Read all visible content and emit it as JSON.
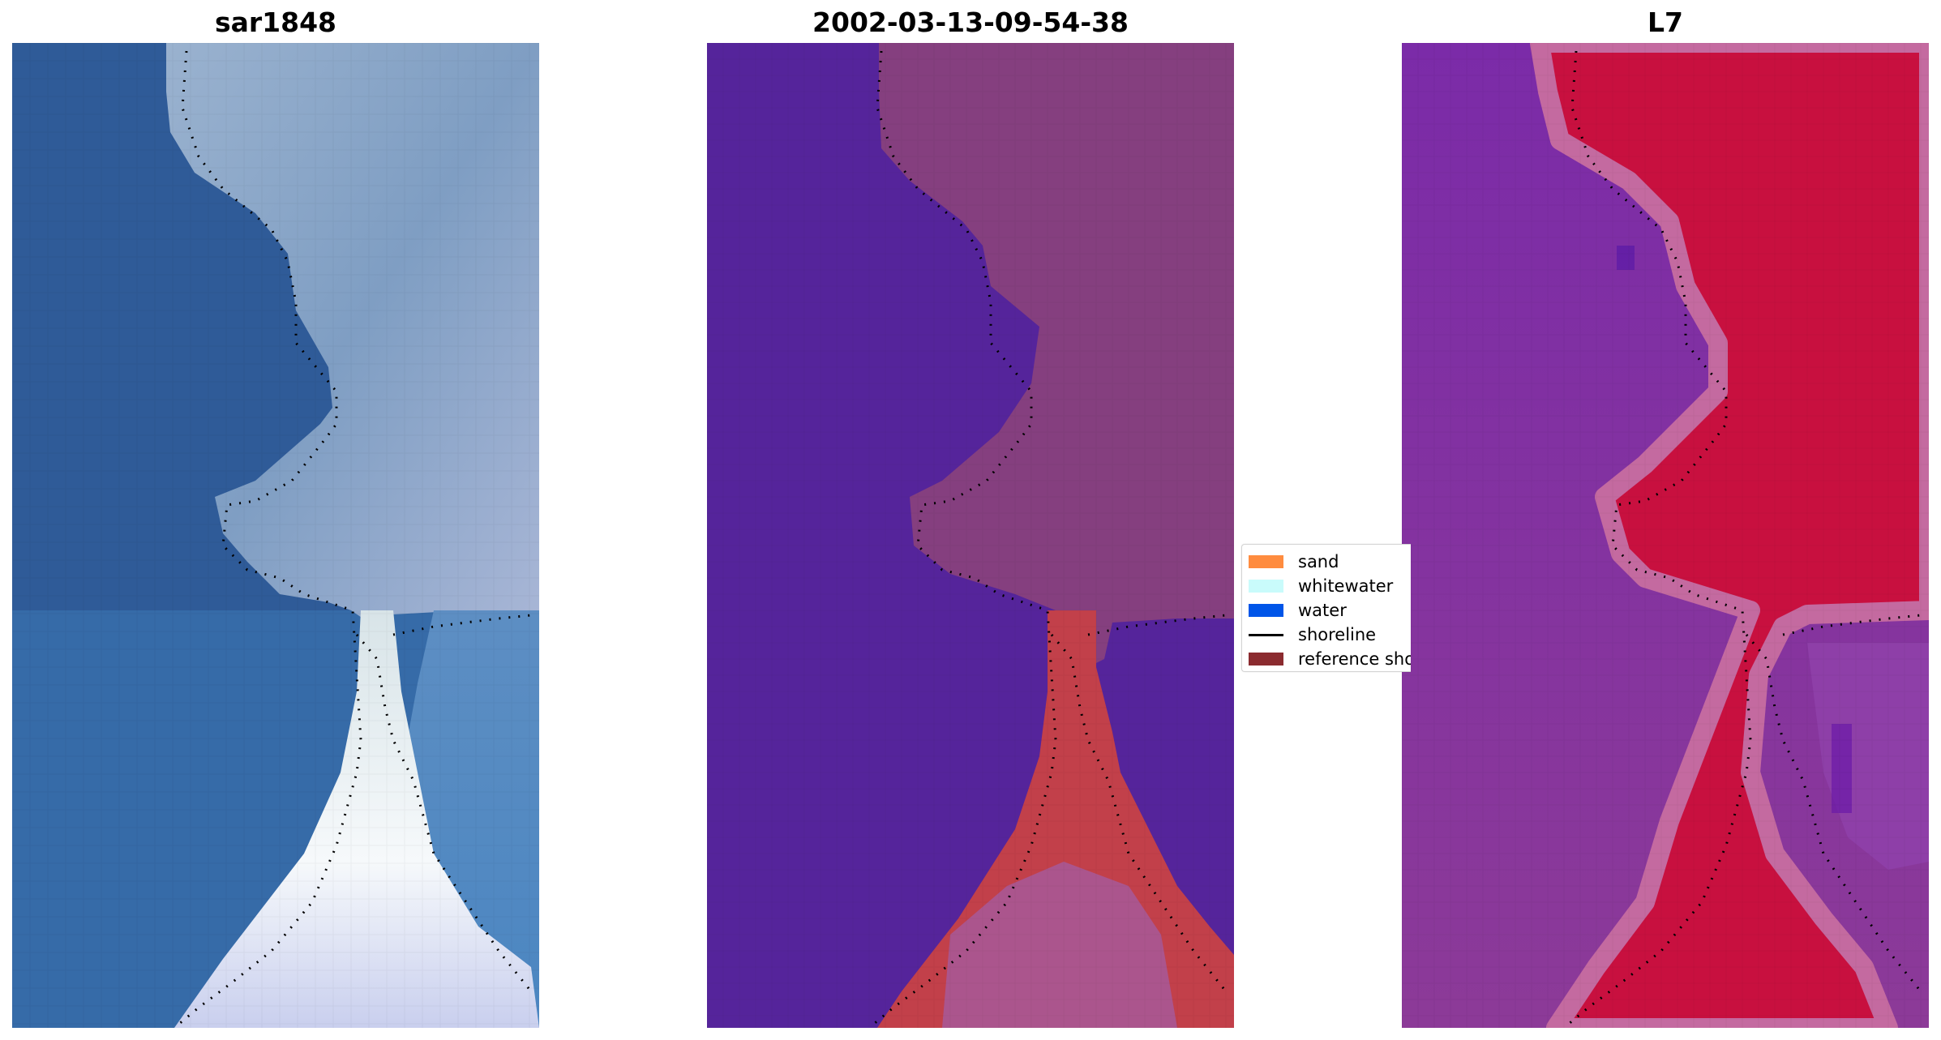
{
  "panels": [
    {
      "title": "sar1848"
    },
    {
      "title": "2002-03-13-09-54-38"
    },
    {
      "title": "L7"
    }
  ],
  "legend": {
    "items": [
      {
        "label": "sand",
        "color": "#ff8c3f",
        "kind": "patch"
      },
      {
        "label": "whitewater",
        "color": "#c9fbfb",
        "kind": "patch"
      },
      {
        "label": "water",
        "color": "#0055e8",
        "kind": "patch"
      },
      {
        "label": "shoreline",
        "color": "#000000",
        "kind": "line"
      },
      {
        "label": "reference shoreline",
        "color": "#8b2b2f",
        "kind": "patch"
      }
    ]
  },
  "colors": {
    "sar_water": "#2f5b98",
    "sar_land": "#8fa9c9",
    "sar_bright": "#e9eef6",
    "class_water": "#55249b",
    "class_land": "#853f7f",
    "class_sand": "#c2404a",
    "index_water": "#7b2ba8",
    "index_land": "#c8103f"
  }
}
